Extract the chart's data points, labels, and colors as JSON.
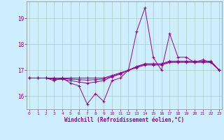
{
  "xlabel": "Windchill (Refroidissement éolien,°C)",
  "background_color": "#cceeff",
  "grid_color": "#aaccbb",
  "line_color": "#990099",
  "spine_color": "#888888",
  "x_hours": [
    0,
    1,
    2,
    3,
    4,
    5,
    6,
    7,
    8,
    9,
    10,
    11,
    12,
    13,
    14,
    15,
    16,
    17,
    18,
    19,
    20,
    21,
    22,
    23
  ],
  "series1": [
    16.7,
    16.7,
    16.7,
    16.6,
    16.7,
    16.5,
    16.4,
    15.7,
    16.1,
    15.8,
    16.6,
    16.7,
    17.0,
    18.5,
    19.4,
    17.5,
    17.0,
    18.4,
    17.5,
    17.5,
    17.3,
    17.4,
    17.3,
    17.0
  ],
  "series2": [
    16.7,
    16.7,
    16.7,
    16.7,
    16.7,
    16.7,
    16.7,
    16.7,
    16.7,
    16.7,
    16.8,
    16.9,
    17.0,
    17.1,
    17.2,
    17.2,
    17.2,
    17.3,
    17.3,
    17.3,
    17.3,
    17.3,
    17.3,
    17.0
  ],
  "series3": [
    16.7,
    16.7,
    16.7,
    16.65,
    16.65,
    16.6,
    16.55,
    16.5,
    16.55,
    16.6,
    16.75,
    16.85,
    17.0,
    17.15,
    17.25,
    17.25,
    17.25,
    17.35,
    17.35,
    17.35,
    17.35,
    17.35,
    17.35,
    17.0
  ],
  "series4": [
    16.7,
    16.7,
    16.7,
    16.68,
    16.68,
    16.66,
    16.64,
    16.62,
    16.64,
    16.66,
    16.77,
    16.87,
    17.0,
    17.13,
    17.23,
    17.23,
    17.23,
    17.33,
    17.33,
    17.33,
    17.33,
    17.33,
    17.33,
    17.0
  ],
  "ylim": [
    15.5,
    19.65
  ],
  "yticks": [
    16,
    17,
    18,
    19
  ],
  "xlim": [
    -0.3,
    23.3
  ]
}
